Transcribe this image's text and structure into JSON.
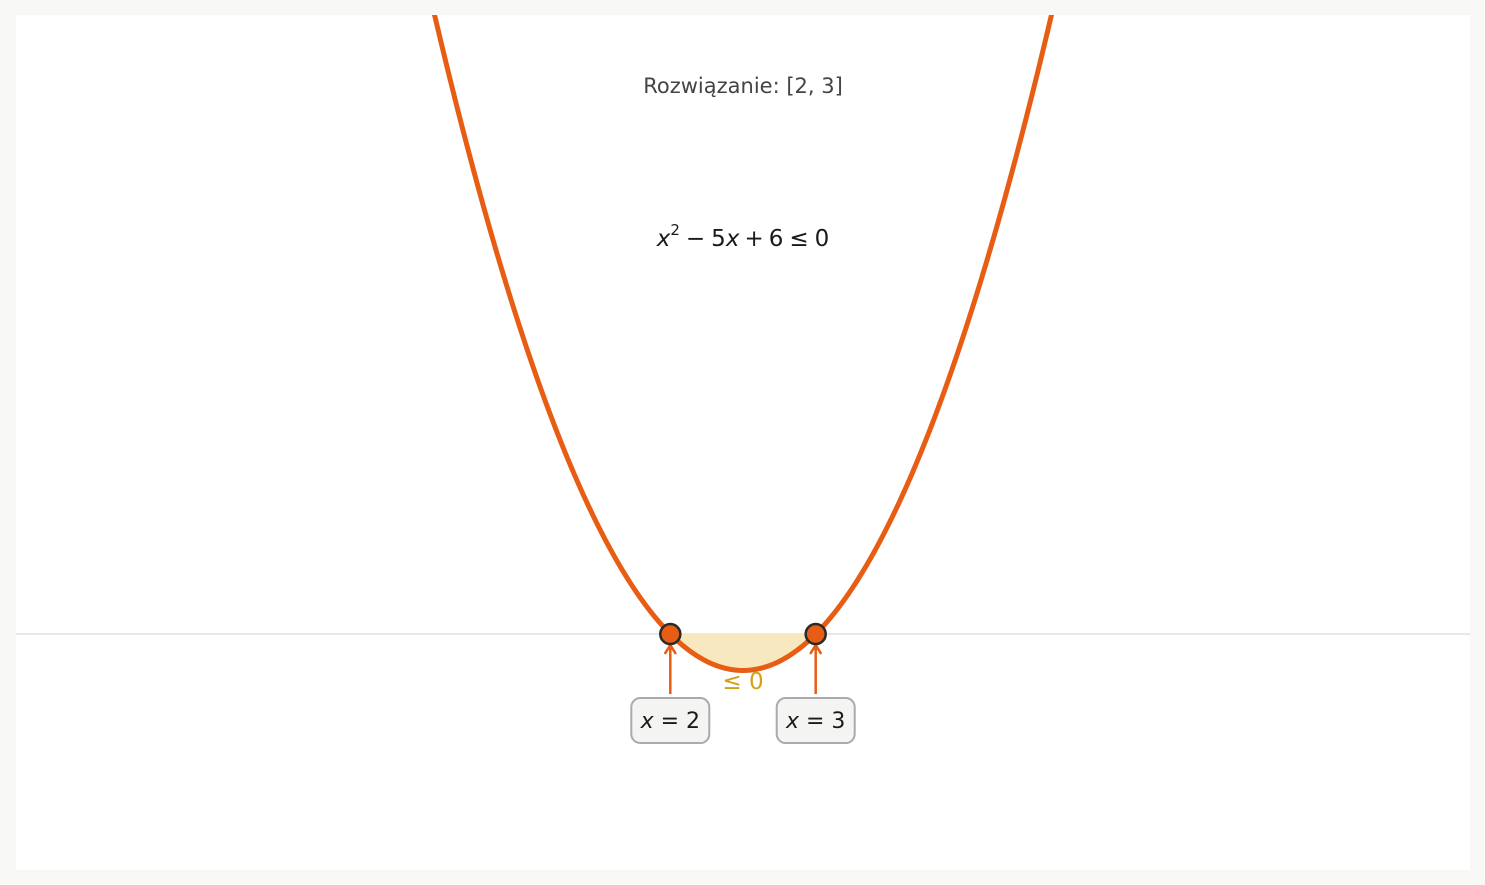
{
  "chart_data": {
    "type": "line",
    "title": "Rozwiązanie: [2, 3]",
    "equation": {
      "x": "x",
      "exp": "2",
      "minus": "−",
      "mid": "5",
      "x2": "x",
      "plus": "+",
      "tail": "6",
      "rel": "≤",
      "rhs": "0"
    },
    "coefficients": {
      "a": 1,
      "b": -5,
      "c": 6
    },
    "roots": [
      2,
      3
    ],
    "root_labels": [
      {
        "var": "x",
        "eq": " = ",
        "val": "2"
      },
      {
        "var": "x",
        "eq": " = ",
        "val": "3"
      }
    ],
    "region_label": "≤ 0",
    "shaded_interval": [
      2,
      3
    ],
    "xlim": [
      -2.5,
      7.5
    ],
    "ylim": [
      -1.62,
      4.25
    ],
    "grid": false,
    "colors": {
      "curve": "#e85d14",
      "root_fill": "#e85d14",
      "root_stroke": "#2a2a2a",
      "shade": "#f7e8c0",
      "region_text": "#d4a017",
      "axis": "#e8e8e8",
      "title_text": "#444444",
      "equation_text": "#1a1a1a",
      "label_box_fill": "#f4f4f2",
      "label_box_stroke": "#aaaaaa"
    }
  }
}
